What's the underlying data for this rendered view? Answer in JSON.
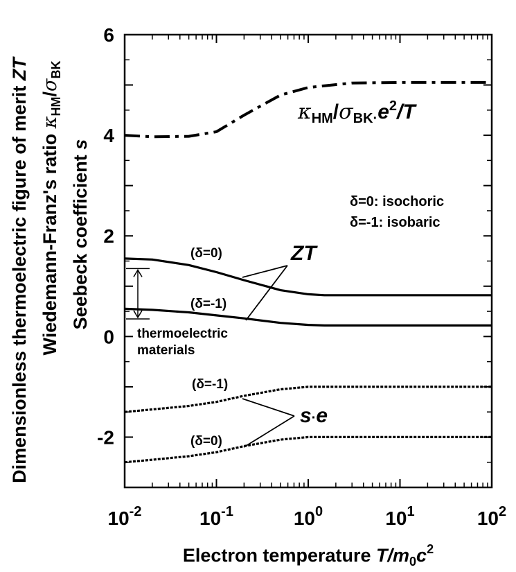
{
  "chart_data": {
    "type": "line",
    "x_scale": "log",
    "xlim": [
      0.01,
      100
    ],
    "ylim": [
      -3,
      6
    ],
    "grid": false,
    "x_ticks": [
      {
        "base": "10",
        "exp": "-2"
      },
      {
        "base": "10",
        "exp": "-1"
      },
      {
        "base": "10",
        "exp": "0"
      },
      {
        "base": "10",
        "exp": "1"
      },
      {
        "base": "10",
        "exp": "2"
      }
    ],
    "y_ticks": [
      "6",
      "4",
      "2",
      "0",
      "-2"
    ],
    "xlabel": {
      "text": "Electron temperature ",
      "var_T": "T",
      "slash": "/",
      "var_m": "m",
      "sub_0": "0",
      "var_c": "c",
      "sup_2": "2"
    },
    "ylabel_lines": {
      "line1_text": "Dimensionless thermoelectric figure of merit ",
      "line1_var": "ZT",
      "line2_text": "Wiedemann-Franz's ratio ",
      "line2_kappa": "κ",
      "line2_kappa_sub": "HM",
      "line2_slash": "/",
      "line2_sigma": "σ",
      "line2_sigma_sub": "BK",
      "line3_text": "Seebeck coefficient ",
      "line3_var": "s"
    },
    "series": [
      {
        "name": "κHM/σBK·e2/T",
        "style": "dashdot",
        "x": [
          0.01,
          0.02,
          0.05,
          0.1,
          0.2,
          0.5,
          1,
          3,
          10,
          100
        ],
        "y": [
          4.0,
          3.97,
          3.98,
          4.07,
          4.4,
          4.8,
          4.95,
          5.04,
          5.05,
          5.05
        ]
      },
      {
        "name": "ZT (δ=0)",
        "style": "solid",
        "x": [
          0.01,
          0.02,
          0.05,
          0.1,
          0.2,
          0.5,
          1,
          1.5,
          3,
          10,
          100
        ],
        "y": [
          1.55,
          1.53,
          1.42,
          1.28,
          1.12,
          0.92,
          0.84,
          0.82,
          0.82,
          0.82,
          0.82
        ]
      },
      {
        "name": "ZT (δ=-1)",
        "style": "solid",
        "x": [
          0.01,
          0.02,
          0.05,
          0.1,
          0.2,
          0.5,
          1,
          1.5,
          3,
          10,
          100
        ],
        "y": [
          0.55,
          0.53,
          0.48,
          0.42,
          0.36,
          0.27,
          0.23,
          0.22,
          0.22,
          0.22,
          0.22
        ]
      },
      {
        "name": "s·e (δ=-1)",
        "style": "dotted",
        "x": [
          0.01,
          0.02,
          0.05,
          0.1,
          0.2,
          0.5,
          1,
          1.5,
          3,
          10,
          100
        ],
        "y": [
          -1.5,
          -1.45,
          -1.38,
          -1.3,
          -1.18,
          -1.05,
          -1.0,
          -1.0,
          -1.0,
          -1.0,
          -1.0
        ]
      },
      {
        "name": "s·e (δ=0)",
        "style": "dotted",
        "x": [
          0.01,
          0.02,
          0.05,
          0.1,
          0.2,
          0.5,
          1,
          1.5,
          3,
          10,
          100
        ],
        "y": [
          -2.5,
          -2.45,
          -2.38,
          -2.3,
          -2.18,
          -2.05,
          -2.0,
          -2.0,
          -2.0,
          -2.0,
          -2.0
        ]
      }
    ],
    "thermoelectric_band": [
      0.35,
      1.35
    ],
    "annotations": {
      "wf_kappa": "κ",
      "wf_kappa_sub": "HM",
      "wf_slash": "/",
      "wf_sigma": "σ",
      "wf_sigma_sub": "BK",
      "wf_dot": "·",
      "wf_e": "e",
      "wf_e_sup": "2",
      "wf_over": "/",
      "wf_T": "T",
      "legend_line1": "δ=0: isochoric",
      "legend_line2": "δ=-1: isobaric",
      "zt_label": "ZT",
      "zt_delta0": "(δ=0)",
      "zt_deltam1": "(δ=-1)",
      "te_materials_line1": "thermoelectric",
      "te_materials_line2": "materials",
      "se_s": "s",
      "se_dot": "·",
      "se_e": "e",
      "se_deltam1": "(δ=-1)",
      "se_delta0": "(δ=0)"
    }
  }
}
